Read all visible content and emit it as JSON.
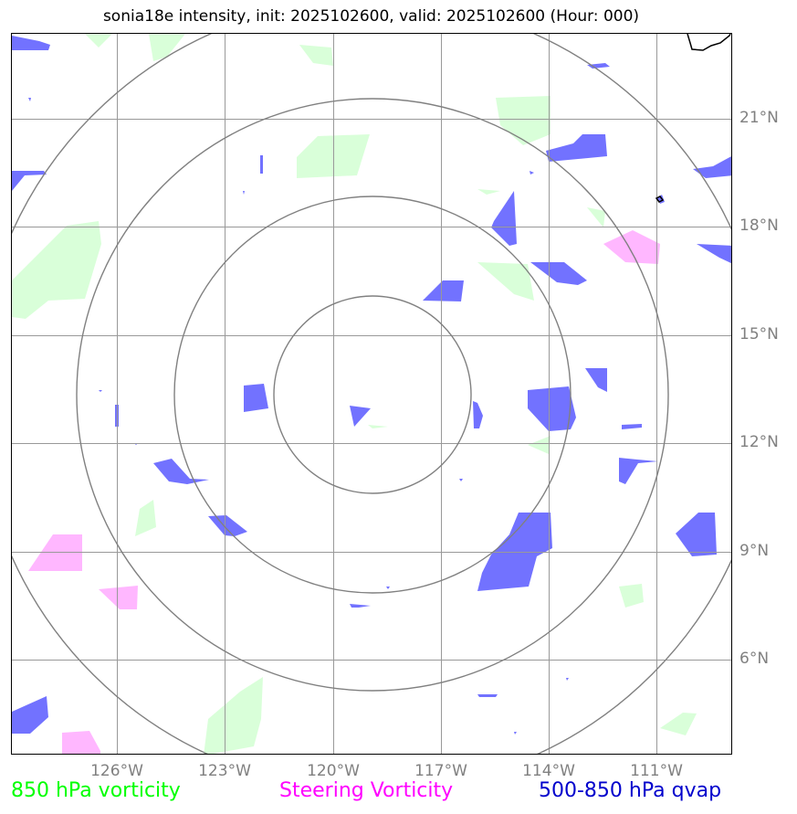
{
  "title": "sonia18e intensity, init: 2025102600, valid: 2025102600 (Hour: 000)",
  "latitude_labels": [
    "21°N",
    "18°N",
    "15°N",
    "12°N",
    "9°N",
    "6°N"
  ],
  "longitude_labels": [
    "126°W",
    "123°W",
    "120°W",
    "117°W",
    "114°W",
    "111°W"
  ],
  "legend": {
    "vorticity_850": "850 hPa vorticity",
    "steering_vorticity": "Steering Vorticity",
    "qvap": "500-850 hPa qvap"
  },
  "colors": {
    "vorticity_850": "#00ff00",
    "steering_vorticity": "#ff00ff",
    "qvap": "#0000cc",
    "grid": "#999999",
    "rings": "#808080",
    "labels": "#808080"
  },
  "range_rings_count": 4
}
